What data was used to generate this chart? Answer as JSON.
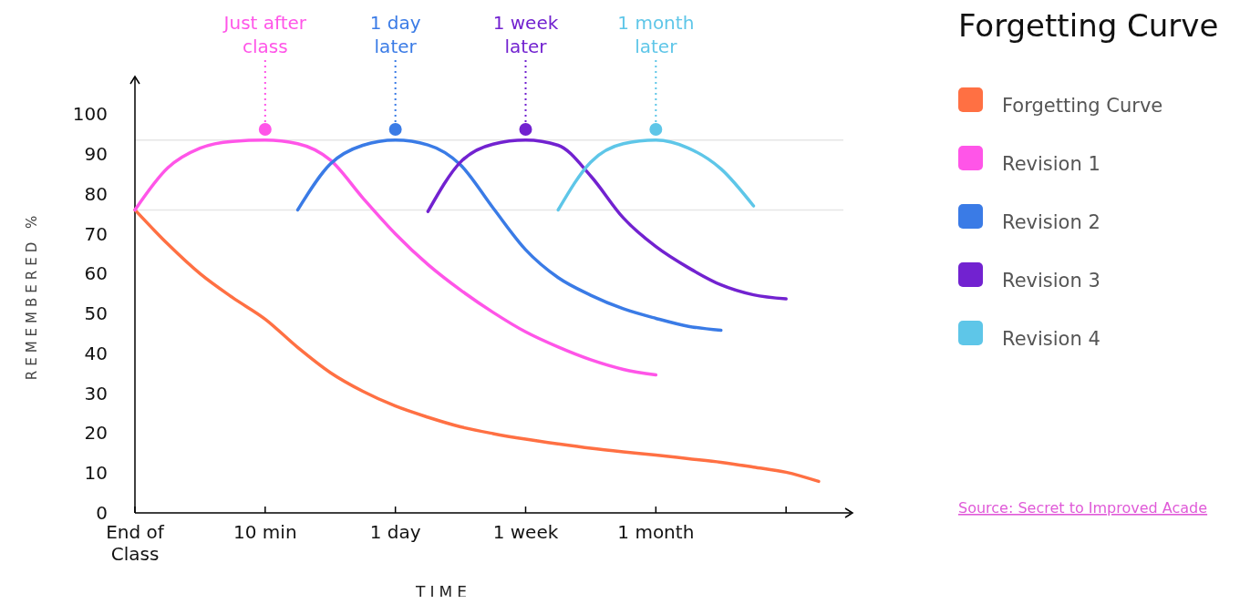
{
  "chart_data": {
    "type": "line",
    "title": "Forgetting Curve",
    "xlabel": "TIME",
    "ylabel": "REMEMBERED %",
    "categories": [
      "End of\nClass",
      null,
      null,
      null,
      "10 min",
      null,
      null,
      null,
      "1 day",
      null,
      null,
      null,
      "1 week",
      null,
      null,
      null,
      "1 month",
      null,
      null,
      null,
      null,
      null
    ],
    "ylim": [
      0,
      109
    ],
    "yticks": [
      0,
      10,
      20,
      30,
      40,
      50,
      60,
      70,
      80,
      90,
      100
    ],
    "grid": false,
    "legend": "right",
    "marker": "none",
    "line_style": "solid",
    "ref_lines": [
      {
        "axis": "y",
        "value": 93.5,
        "color": "#e6e6e6"
      },
      {
        "axis": "y",
        "value": 76,
        "color": "#e6e6e6"
      }
    ],
    "annotations": [
      {
        "text": "Just after class",
        "x": "10 min",
        "y": 96.2
      },
      {
        "text": "1 day later",
        "x": "1 day",
        "y": 96.2
      },
      {
        "text": "1 week later",
        "x": "1 week",
        "y": 96.2
      },
      {
        "text": "1 month later",
        "x": "1 month",
        "y": 96.2
      },
      "Source: Secret to Improved Acade"
    ],
    "series": [
      {
        "name": "Forgetting Curve",
        "color": "#ff7043",
        "values": [
          76,
          67.5,
          60,
          54,
          48.6,
          41.5,
          35.2,
          30.5,
          26.8,
          24,
          21.6,
          19.9,
          18.5,
          17.3,
          16.2,
          15.3,
          14.5,
          13.6,
          12.7,
          11.5,
          10.2,
          7.9
        ]
      },
      {
        "name": "Revision 1",
        "color": "#ff55e8",
        "values": [
          76,
          86.5,
          91.5,
          93.2,
          93.5,
          92.6,
          88.5,
          79,
          70,
          62.3,
          55.9,
          50.3,
          45.4,
          41.6,
          38.4,
          36,
          34.6,
          null,
          null,
          null,
          null,
          null
        ]
      },
      {
        "name": "Revision 2",
        "color": "#3a7be6",
        "values": [
          null,
          null,
          null,
          null,
          null,
          76,
          87.5,
          92.2,
          93.5,
          92.3,
          87.3,
          76.5,
          66,
          59,
          54.6,
          51.2,
          48.8,
          46.8,
          45.8,
          null,
          null,
          null
        ]
      },
      {
        "name": "Revision 3",
        "color": "#7222d0",
        "values": [
          null,
          null,
          null,
          null,
          null,
          null,
          null,
          null,
          null,
          75.6,
          88,
          92.5,
          93.5,
          92.2,
          84.5,
          74,
          66.8,
          61.5,
          57.2,
          54.7,
          53.7,
          null
        ]
      },
      {
        "name": "Revision 4",
        "color": "#5ec6e8",
        "values": [
          null,
          null,
          null,
          null,
          null,
          null,
          null,
          null,
          null,
          null,
          null,
          null,
          null,
          76,
          88,
          92.6,
          93.5,
          91.5,
          86.3,
          77,
          null,
          null
        ]
      }
    ]
  }
}
